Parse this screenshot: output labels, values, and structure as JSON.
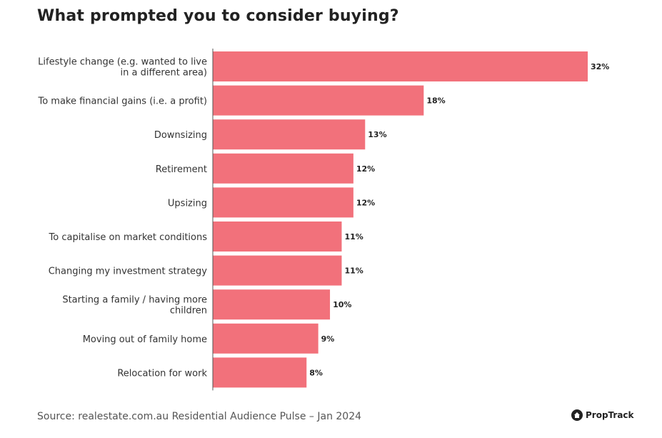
{
  "chart_data": {
    "type": "bar",
    "orientation": "horizontal",
    "title": "What prompted you to consider buying?",
    "categories": [
      "Lifestyle change (e.g. wanted to live in a different area)",
      "To make financial gains (i.e. a profit)",
      "Downsizing",
      "Retirement",
      "Upsizing",
      "To capitalise on market conditions",
      "Changing my investment strategy",
      "Starting a family / having more children",
      "Moving out of family home",
      "Relocation for work"
    ],
    "category_lines": [
      [
        "Lifestyle change (e.g. wanted to live",
        "in a different area)"
      ],
      [
        "To make financial gains (i.e. a profit)"
      ],
      [
        "Downsizing"
      ],
      [
        "Retirement"
      ],
      [
        "Upsizing"
      ],
      [
        "To capitalise on market conditions"
      ],
      [
        "Changing my investment strategy"
      ],
      [
        "Starting a family / having more",
        "children"
      ],
      [
        "Moving out of family home"
      ],
      [
        "Relocation for work"
      ]
    ],
    "values": [
      32,
      18,
      13,
      12,
      12,
      11,
      11,
      10,
      9,
      8
    ],
    "value_labels": [
      "32%",
      "18%",
      "13%",
      "12%",
      "12%",
      "11%",
      "11%",
      "10%",
      "9%",
      "8%"
    ],
    "unit": "%",
    "xlim": [
      0,
      32
    ],
    "grid": false,
    "bar_color": "#f2717b"
  },
  "footer": {
    "source": "Source: realestate.com.au Residential Audience Pulse – Jan 2024",
    "brand": "PropTrack"
  }
}
